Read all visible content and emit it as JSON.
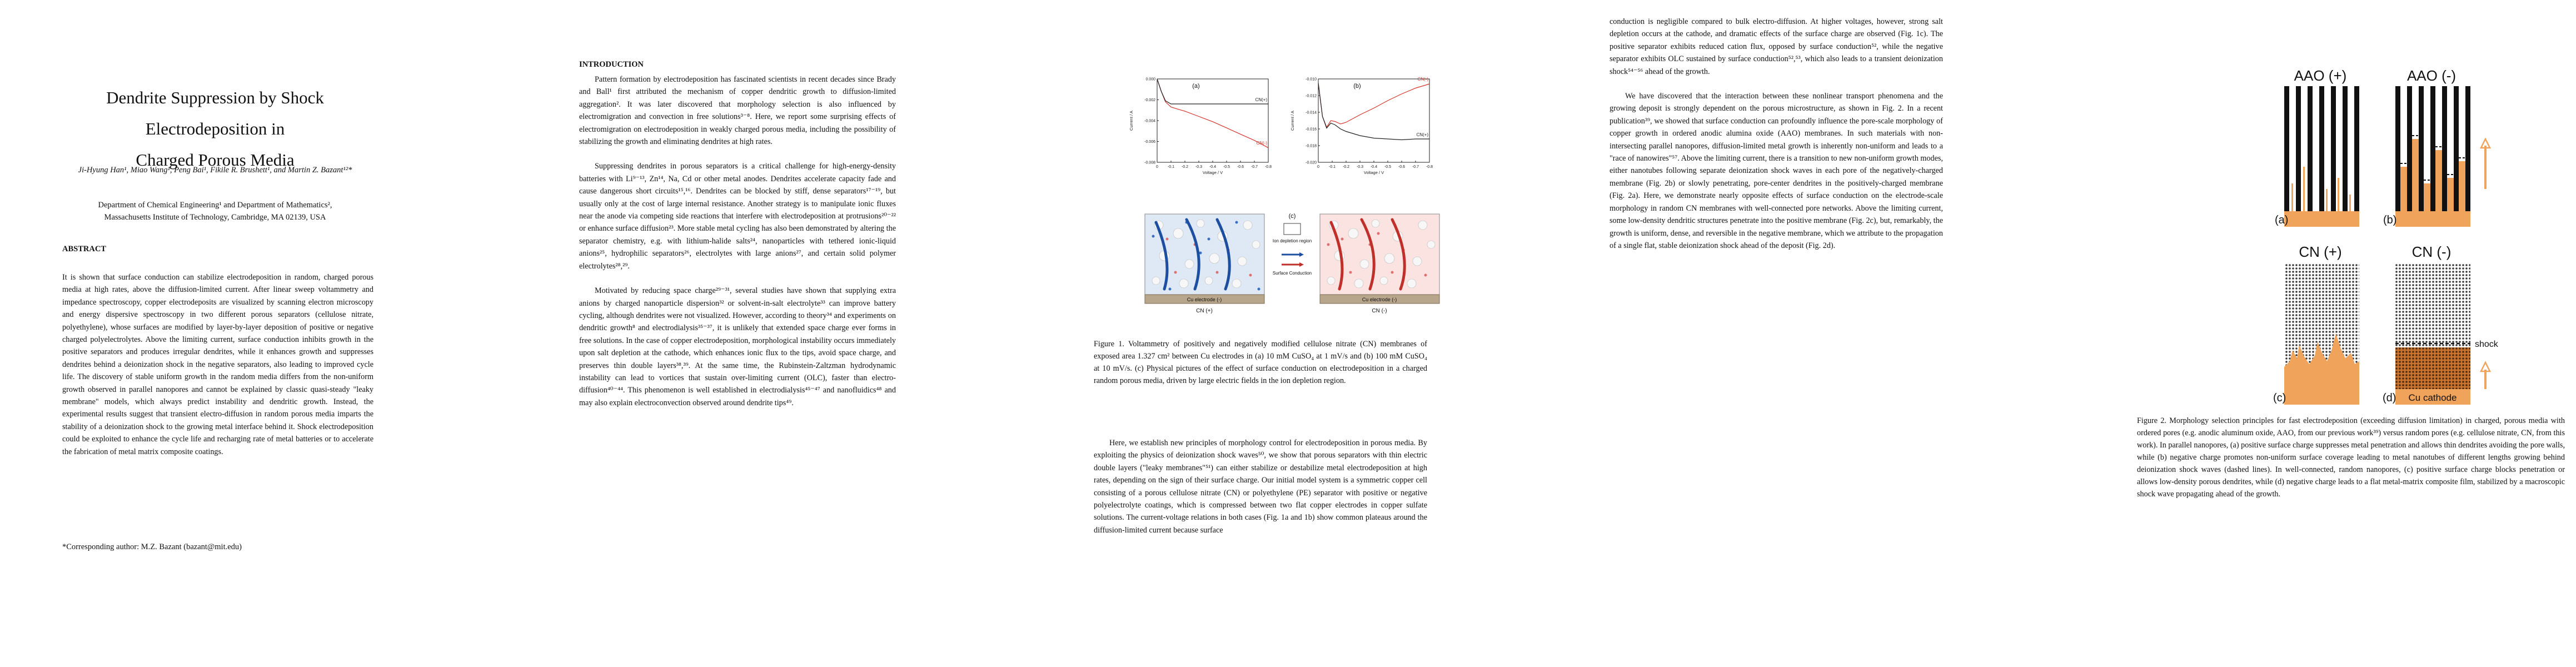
{
  "page1": {
    "title_line1": "Dendrite Suppression by Shock Electrodeposition in",
    "title_line2": "Charged Porous Media",
    "authors": "Ji-Hyung Han¹, Miao Wang¹, Peng Bai¹, Fikile R. Brushett¹, and Martin Z. Bazant¹²*",
    "affiliation1": "Department of Chemical Engineering¹ and Department of Mathematics²,",
    "affiliation2": "Massachusetts Institute of Technology, Cambridge, MA 02139, USA",
    "abstract_heading": "ABSTRACT",
    "abstract": "It is shown that surface conduction can stabilize electrodeposition in random, charged porous media at high rates, above the diffusion-limited current. After linear sweep voltammetry and impedance spectroscopy, copper electrodeposits are visualized by scanning electron microscopy and energy dispersive spectroscopy in two different porous separators (cellulose nitrate, polyethylene), whose surfaces are modified by layer-by-layer deposition of positive or negative charged polyelectrolytes. Above the limiting current, surface conduction inhibits growth in the positive separators and produces irregular dendrites, while it enhances growth and suppresses dendrites behind a deionization shock in the negative separators, also leading to improved cycle life. The discovery of stable uniform growth in the random media differs from the non-uniform growth observed in parallel nanopores and cannot be explained by classic quasi-steady \"leaky membrane\" models, which always predict instability and dendritic growth. Instead, the experimental results suggest that transient electro-diffusion in random porous media imparts the stability of a deionization shock to the growing metal interface behind it. Shock electrodeposition could be exploited to enhance the cycle life and recharging rate of metal batteries or to accelerate the fabrication of metal matrix composite coatings.",
    "corresponding": "*Corresponding author: M.Z. Bazant (bazant@mit.edu)"
  },
  "page2": {
    "heading": "INTRODUCTION",
    "para1": "Pattern formation by electrodeposition has fascinated scientists in recent decades since Brady and Ball¹ first attributed the mechanism of copper dendritic growth to diffusion-limited aggregation². It was later discovered that morphology selection is also influenced by electromigration and convection in free solutions³⁻⁸. Here, we report some surprising effects of electromigration on electrodeposition in weakly charged porous media, including the possibility of stabilizing the growth and eliminating dendrites at high rates.",
    "para2": "Suppressing dendrites in porous separators is a critical challenge for high-energy-density batteries with Li⁹⁻¹³, Zn¹⁴, Na, Cd or other metal anodes. Dendrites accelerate capacity fade and cause dangerous short circuits¹⁵,¹⁶. Dendrites can be blocked by stiff, dense separators¹⁷⁻¹⁹, but usually only at the cost of large internal resistance. Another strategy is to manipulate ionic fluxes near the anode via competing side reactions that interfere with electrodeposition at protrusions²⁰⁻²² or enhance surface diffusion²³. More stable metal cycling has also been demonstrated by altering the separator chemistry, e.g. with lithium-halide salts²⁴, nanoparticles with tethered ionic-liquid anions²⁵, hydrophilic separators²⁶, electrolytes with large anions²⁷, and certain solid polymer electrolytes²⁸,²⁹.",
    "para3": "Motivated by reducing space charge²⁹⁻³¹, several studies have shown that supplying extra anions by charged nanoparticle dispersion³² or solvent-in-salt electrolyte³³ can improve battery cycling, although dendrites were not visualized. However, according to theory³⁴ and experiments on dendritic growth⁸ and electrodialysis³⁵⁻³⁷, it is unlikely that extended space charge ever forms in free solutions. In the case of copper electrodeposition, morphological instability occurs immediately upon salt depletion at the cathode, which enhances ionic flux to the tips, avoid space charge, and preserves thin double layers³⁸,³⁹. At the same time, the Rubinstein-Zaltzman hydrodynamic instability can lead to vortices that sustain over-limiting current (OLC), faster than electro-diffusion⁴⁰⁻⁴⁴. This phenomenon is well established in electrodialysis⁴⁵⁻⁴⁷ and nanofluidics⁴⁸ and may also explain electroconvection observed around dendrite tips⁴⁹."
  },
  "page3": {
    "fig1": {
      "panel_a": "(a)",
      "panel_b": "(b)",
      "panel_c": "(c)",
      "y_label": "Current / A",
      "x_label": "Voltage / V",
      "label_neg": "CN(-)",
      "label_pos": "CN(+)",
      "legend_depletion": "Ion depletion region",
      "legend_surface": "Surface Conduction",
      "electrode_left": "Cu electrode (-)",
      "electrode_right": "Cu electrode (-)",
      "sep_left": "CN (+)",
      "sep_right": "CN (-)"
    },
    "caption": "Figure 1. Voltammetry of positively and negatively modified cellulose nitrate (CN) membranes of exposed area 1.327 cm² between Cu electrodes in (a) 10 mM CuSO₄ at 1 mV/s and (b) 100 mM CuSO₄ at 10 mV/s. (c) Physical pictures of the effect of surface conduction on electrodeposition in a charged random porous media, driven by large electric fields in the ion depletion region.",
    "para": "Here, we establish new principles of morphology control for electrodeposition in porous media. By exploiting the physics of deionization shock waves⁵⁰, we show that porous separators with thin electric double layers (\"leaky membranes\"⁵¹) can either stabilize or destabilize metal electrodeposition at high rates, depending on the sign of their surface charge. Our initial model system is a symmetric copper cell consisting of a porous cellulose nitrate (CN) or polyethylene (PE) separator with positive or negative polyelectrolyte coatings, which is compressed between two flat copper electrodes in copper sulfate solutions. The current-voltage relations in both cases (Fig. 1a and 1b) show common plateaus around the diffusion-limited current because surface"
  },
  "page4": {
    "para1": "conduction is negligible compared to bulk electro-diffusion. At higher voltages, however, strong salt depletion occurs at the cathode, and dramatic effects of the surface charge are observed (Fig. 1c). The positive separator exhibits reduced cation flux, opposed by surface conduction⁵², while the negative separator exhibits OLC sustained by surface conduction⁵²,⁵³, which also leads to a transient deionization shock⁵⁴⁻⁵⁶ ahead of the growth.",
    "para2": "We have discovered that the interaction between these nonlinear transport phenomena and the growing deposit is strongly dependent on the porous microstructure, as shown in Fig. 2. In a recent publication³⁹, we showed that surface conduction can profoundly influence the pore-scale morphology of copper growth in ordered anodic alumina oxide (AAO) membranes. In such materials with non-intersecting parallel nanopores, diffusion-limited metal growth is inherently non-uniform and leads to a \"race of nanowires\"⁵⁷. Above the limiting current, there is a transition to new non-uniform growth modes, either nanotubes following separate deionization shock waves in each pore of the negatively-charged membrane (Fig. 2b) or slowly penetrating, pore-center dendrites in the positively-charged membrane (Fig. 2a). Here, we demonstrate nearly opposite effects of surface conduction on the electrode-scale morphology in random CN membranes with well-connected pore networks. Above the limiting current, some low-density dendritic structures penetrate into the positive membrane (Fig. 2c), but, remarkably, the growth is uniform, dense, and reversible in the negative membrane, which we attribute to the propagation of a single flat, stable deionization shock ahead of the deposit (Fig. 2d)."
  },
  "page5": {
    "fig2": {
      "aao_pos": "AAO (+)",
      "aao_neg": "AAO (-)",
      "cn_pos": "CN (+)",
      "cn_neg": "CN (-)",
      "label_a": "(a)",
      "label_b": "(b)",
      "label_c": "(c)",
      "label_d": "(d)",
      "shock": "shock",
      "cu_cathode": "Cu cathode"
    },
    "caption": "Figure 2. Morphology selection principles for fast electrodeposition (exceeding diffusion limitation) in charged, porous media with ordered pores (e.g. anodic aluminum oxide, AAO, from our previous work³⁹) versus random pores (e.g. cellulose nitrate, CN, from this work). In parallel nanopores, (a) positive surface charge suppresses metal penetration and allows thin dendrites avoiding the pore walls, while (b) negative charge promotes non-uniform surface coverage leading to metal nanotubes of different lengths growing behind deionization shock waves (dashed lines). In well-connected, random nanopores, (c) positive surface charge blocks penetration or allows low-density porous dendrites, while (d) negative charge leads to a flat metal-matrix composite film, stabilized by a macroscopic shock wave propagating ahead of the growth."
  },
  "chart_data": [
    {
      "type": "line",
      "panel": "(a)",
      "xlabel": "Voltage / V",
      "ylabel": "Current / A",
      "xlim": [
        0,
        -0.8
      ],
      "ylim": [
        -0.008,
        0
      ],
      "x_ticks": [
        0,
        -0.1,
        -0.2,
        -0.3,
        -0.4,
        -0.5,
        -0.6,
        -0.7,
        -0.8
      ],
      "y_ticks": [
        -0.008,
        -0.006,
        -0.004,
        -0.002,
        0
      ],
      "series": [
        {
          "name": "CN(-)",
          "color": "#d9332b",
          "x": [
            0,
            -0.03,
            -0.06,
            -0.1,
            -0.15,
            -0.2,
            -0.3,
            -0.4,
            -0.5,
            -0.6,
            -0.7,
            -0.8
          ],
          "y": [
            0,
            -0.0012,
            -0.0022,
            -0.0027,
            -0.0029,
            -0.0031,
            -0.0036,
            -0.0041,
            -0.0047,
            -0.0053,
            -0.0059,
            -0.0066
          ]
        },
        {
          "name": "CN(+)",
          "color": "#222222",
          "x": [
            0,
            -0.03,
            -0.06,
            -0.1,
            -0.15,
            -0.2,
            -0.3,
            -0.4,
            -0.5,
            -0.6,
            -0.7,
            -0.8
          ],
          "y": [
            0,
            -0.0012,
            -0.0021,
            -0.0024,
            -0.0024,
            -0.0024,
            -0.0024,
            -0.0024,
            -0.0024,
            -0.0024,
            -0.0024,
            -0.0024
          ]
        }
      ]
    },
    {
      "type": "line",
      "panel": "(b)",
      "xlabel": "Voltage / V",
      "ylabel": "Current / A",
      "xlim": [
        0,
        -0.8
      ],
      "ylim": [
        -0.02,
        -0.01
      ],
      "x_ticks": [
        0,
        -0.1,
        -0.2,
        -0.3,
        -0.4,
        -0.5,
        -0.6,
        -0.7,
        -0.8
      ],
      "y_ticks": [
        -0.02,
        -0.018,
        -0.016,
        -0.014,
        -0.012,
        -0.01
      ],
      "series": [
        {
          "name": "CN(-)",
          "color": "#d9332b",
          "x": [
            0,
            -0.03,
            -0.06,
            -0.09,
            -0.12,
            -0.16,
            -0.2,
            -0.3,
            -0.4,
            -0.5,
            -0.6,
            -0.7,
            -0.8
          ],
          "y": [
            -0.0105,
            -0.0145,
            -0.0158,
            -0.015,
            -0.0151,
            -0.0154,
            -0.0152,
            -0.0143,
            -0.0135,
            -0.0126,
            -0.0118,
            -0.0111,
            -0.0106
          ]
        },
        {
          "name": "CN(+)",
          "color": "#222222",
          "x": [
            0,
            -0.03,
            -0.06,
            -0.09,
            -0.12,
            -0.16,
            -0.2,
            -0.3,
            -0.4,
            -0.5,
            -0.6,
            -0.7,
            -0.8
          ],
          "y": [
            -0.0105,
            -0.0145,
            -0.0159,
            -0.0153,
            -0.0155,
            -0.016,
            -0.0163,
            -0.0168,
            -0.0171,
            -0.0172,
            -0.0173,
            -0.0172,
            -0.0172
          ]
        }
      ]
    }
  ]
}
